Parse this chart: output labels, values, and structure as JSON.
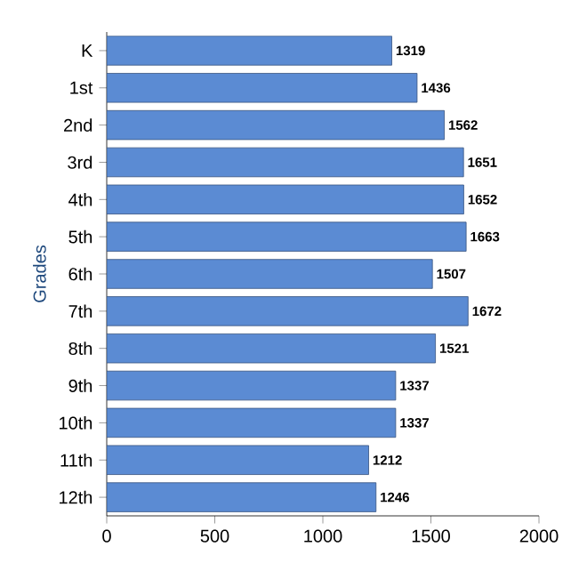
{
  "chart_data": {
    "type": "bar",
    "orientation": "horizontal",
    "ylabel": "Grades",
    "categories": [
      "K",
      "1st",
      "2nd",
      "3rd",
      "4th",
      "5th",
      "6th",
      "7th",
      "8th",
      "9th",
      "10th",
      "11th",
      "12th"
    ],
    "values": [
      1319,
      1436,
      1562,
      1651,
      1652,
      1663,
      1507,
      1672,
      1521,
      1337,
      1337,
      1212,
      1246
    ],
    "color": "#5b8bd3",
    "xlim": [
      0,
      2000
    ],
    "xticks": [
      0,
      500,
      1000,
      1500,
      2000
    ],
    "data_labels": true
  }
}
